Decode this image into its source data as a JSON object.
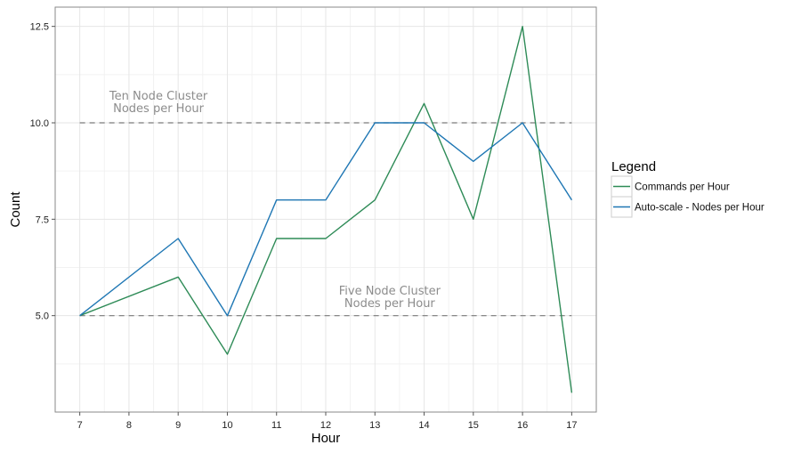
{
  "chart_data": {
    "type": "line",
    "xlabel": "Hour",
    "ylabel": "Count",
    "x": [
      7,
      8,
      9,
      10,
      11,
      12,
      13,
      14,
      15,
      16,
      17
    ],
    "xlim": [
      6.5,
      17.5
    ],
    "ylim": [
      2.5,
      13
    ],
    "yticks": [
      "5.0",
      "7.5",
      "10.0",
      "12.5"
    ],
    "ytick_values": [
      5,
      7.5,
      10,
      12.5
    ],
    "xticks": [
      "7",
      "8",
      "9",
      "10",
      "11",
      "12",
      "13",
      "14",
      "15",
      "16",
      "17"
    ],
    "grid": true,
    "series": [
      {
        "name": "Commands per Hour",
        "color": "#2e8b57",
        "x": [
          7,
          9,
          10,
          11,
          12,
          13,
          14,
          15,
          16,
          17
        ],
        "values": [
          5,
          6,
          4,
          7,
          7,
          8,
          10.5,
          7.5,
          12.5,
          3
        ]
      },
      {
        "name": "Auto-scale - Nodes per Hour",
        "color": "#1f77b4",
        "x": [
          7,
          9,
          10,
          11,
          12,
          13,
          14,
          15,
          16,
          17
        ],
        "values": [
          5,
          7,
          5,
          8,
          8,
          10,
          10,
          9,
          10,
          8
        ]
      }
    ],
    "reference_lines": [
      {
        "y": 10,
        "x_from": 7,
        "x_to": 17,
        "style": "dashed"
      },
      {
        "y": 5,
        "x_from": 7,
        "x_to": 17,
        "style": "dashed"
      }
    ],
    "annotations": [
      {
        "lines": [
          "Ten Node Cluster",
          "Nodes per Hour"
        ],
        "x": 8.6,
        "y": 10.6
      },
      {
        "lines": [
          "Five Node Cluster",
          "Nodes per Hour"
        ],
        "x": 13.3,
        "y": 5.55
      }
    ],
    "legend": {
      "title": "Legend",
      "position": "right"
    }
  }
}
